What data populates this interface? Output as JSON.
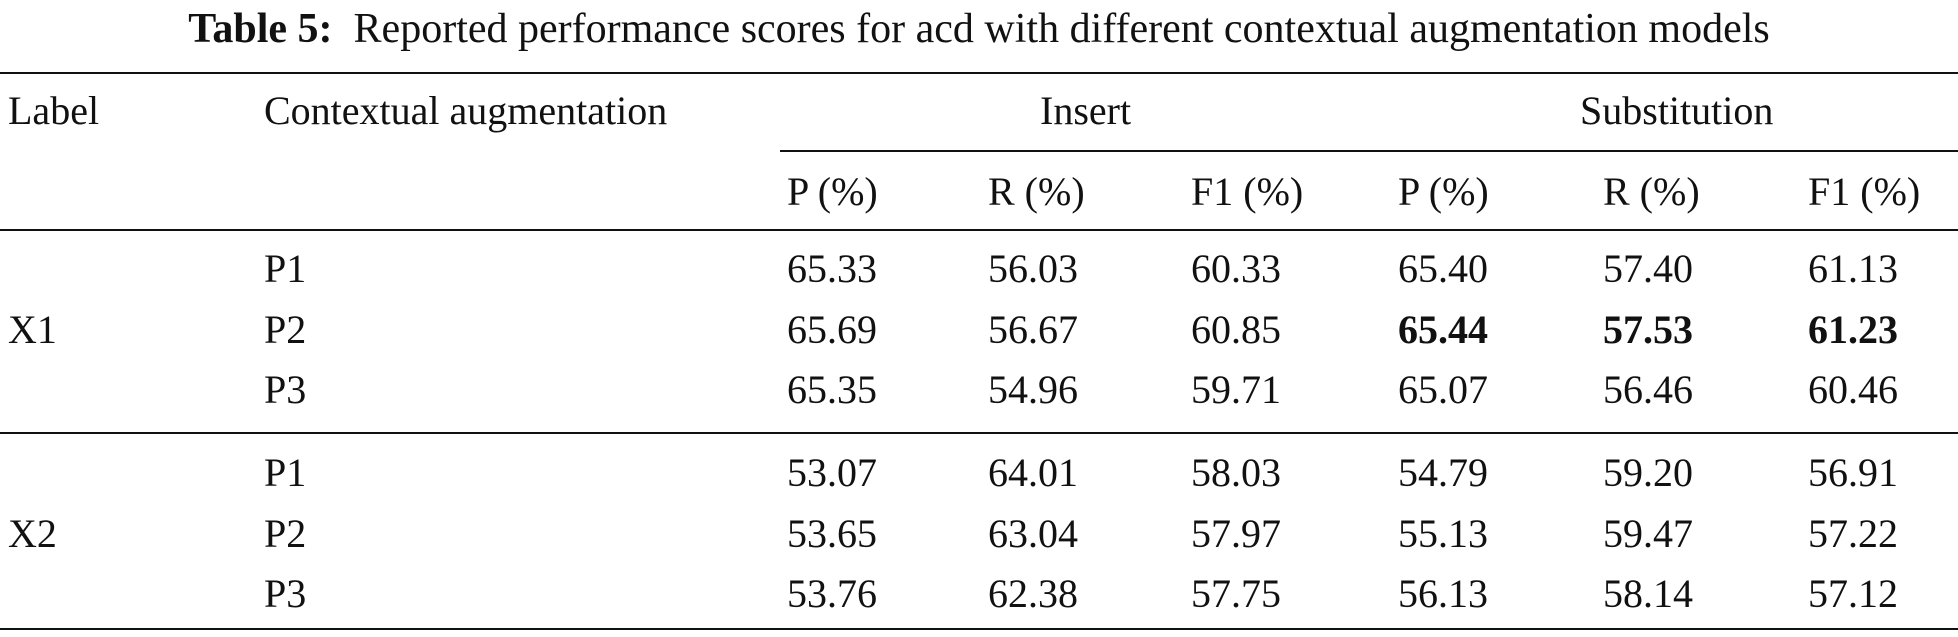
{
  "caption": {
    "label": "Table 5:",
    "text": "Reported performance scores for acd with different contextual augmentation models"
  },
  "header": {
    "label": "Label",
    "contextual": "Contextual augmentation",
    "group_insert": "Insert",
    "group_substitution": "Substitution",
    "p": "P (%)",
    "r": "R (%)",
    "f1": "F1 (%)"
  },
  "groups": [
    {
      "label": "X1",
      "rows": [
        {
          "model": "P1",
          "ins_p": "65.33",
          "ins_r": "56.03",
          "ins_f1": "60.33",
          "sub_p": "65.40",
          "sub_r": "57.40",
          "sub_f1": "61.13",
          "bold_sub": false
        },
        {
          "model": "P2",
          "ins_p": "65.69",
          "ins_r": "56.67",
          "ins_f1": "60.85",
          "sub_p": "65.44",
          "sub_r": "57.53",
          "sub_f1": "61.23",
          "bold_sub": true
        },
        {
          "model": "P3",
          "ins_p": "65.35",
          "ins_r": "54.96",
          "ins_f1": "59.71",
          "sub_p": "65.07",
          "sub_r": "56.46",
          "sub_f1": "60.46",
          "bold_sub": false
        }
      ]
    },
    {
      "label": "X2",
      "rows": [
        {
          "model": "P1",
          "ins_p": "53.07",
          "ins_r": "64.01",
          "ins_f1": "58.03",
          "sub_p": "54.79",
          "sub_r": "59.20",
          "sub_f1": "56.91",
          "bold_sub": false
        },
        {
          "model": "P2",
          "ins_p": "53.65",
          "ins_r": "63.04",
          "ins_f1": "57.97",
          "sub_p": "55.13",
          "sub_r": "59.47",
          "sub_f1": "57.22",
          "bold_sub": false
        },
        {
          "model": "P3",
          "ins_p": "53.76",
          "ins_r": "62.38",
          "ins_f1": "57.75",
          "sub_p": "56.13",
          "sub_r": "58.14",
          "sub_f1": "57.12",
          "bold_sub": false
        }
      ]
    }
  ]
}
